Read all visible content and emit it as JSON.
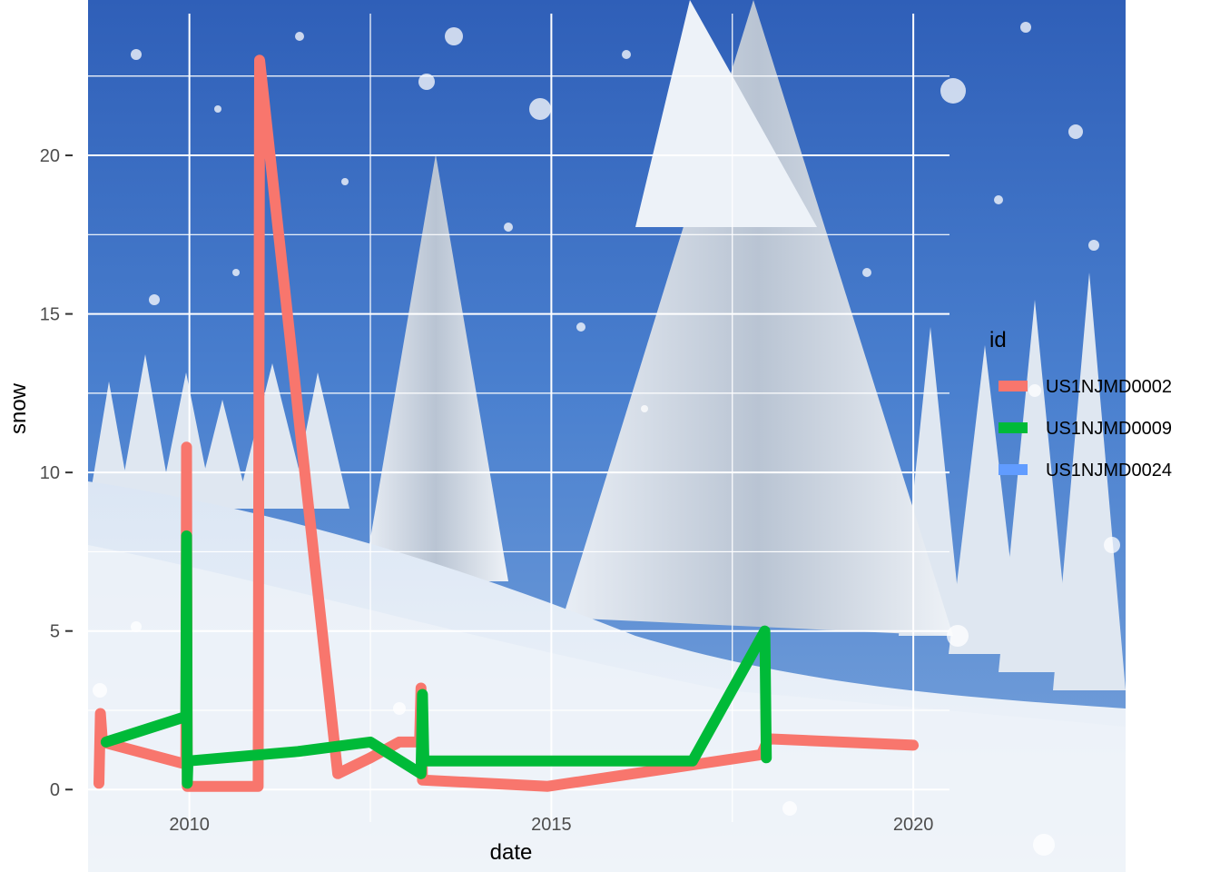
{
  "chart_data": {
    "type": "line",
    "xlabel": "date",
    "ylabel": "snow",
    "x_ticks": [
      2010,
      2015,
      2020
    ],
    "y_ticks": [
      0,
      5,
      10,
      15,
      20
    ],
    "xlim": [
      2008.6,
      2020.5
    ],
    "ylim": [
      -2.6,
      24.9
    ],
    "grid": true,
    "background": "snowy forest photograph",
    "legend": {
      "title": "id",
      "placement": "right",
      "entries": [
        "US1NJMD0002",
        "US1NJMD0009",
        "US1NJMD0024"
      ]
    },
    "series": [
      {
        "name": "US1NJMD0002",
        "color": "#F8766D",
        "points": [
          [
            2008.75,
            0.2
          ],
          [
            2008.77,
            2.4
          ],
          [
            2008.8,
            1.5
          ],
          [
            2009.95,
            0.8
          ],
          [
            2009.96,
            10.8
          ],
          [
            2009.97,
            0.1
          ],
          [
            2010.95,
            0.1
          ],
          [
            2010.97,
            23.0
          ],
          [
            2012.05,
            0.5
          ],
          [
            2012.5,
            1.0
          ],
          [
            2012.9,
            1.5
          ],
          [
            2013.18,
            1.5
          ],
          [
            2013.2,
            3.2
          ],
          [
            2013.22,
            0.3
          ],
          [
            2014.95,
            0.1
          ],
          [
            2017.9,
            1.1
          ],
          [
            2018.0,
            1.6
          ],
          [
            2020.0,
            1.4
          ]
        ]
      },
      {
        "name": "US1NJMD0009",
        "color": "#00BA38",
        "points": [
          [
            2008.85,
            1.5
          ],
          [
            2009.95,
            2.3
          ],
          [
            2009.96,
            8.0
          ],
          [
            2009.97,
            0.2
          ],
          [
            2009.98,
            0.9
          ],
          [
            2011.5,
            1.2
          ],
          [
            2012.5,
            1.5
          ],
          [
            2013.2,
            0.5
          ],
          [
            2013.22,
            3.0
          ],
          [
            2013.24,
            0.9
          ],
          [
            2016.95,
            0.9
          ],
          [
            2017.95,
            5.0
          ],
          [
            2017.97,
            1.0
          ]
        ]
      },
      {
        "name": "US1NJMD0024",
        "color": "#619CFF",
        "points": []
      }
    ]
  }
}
